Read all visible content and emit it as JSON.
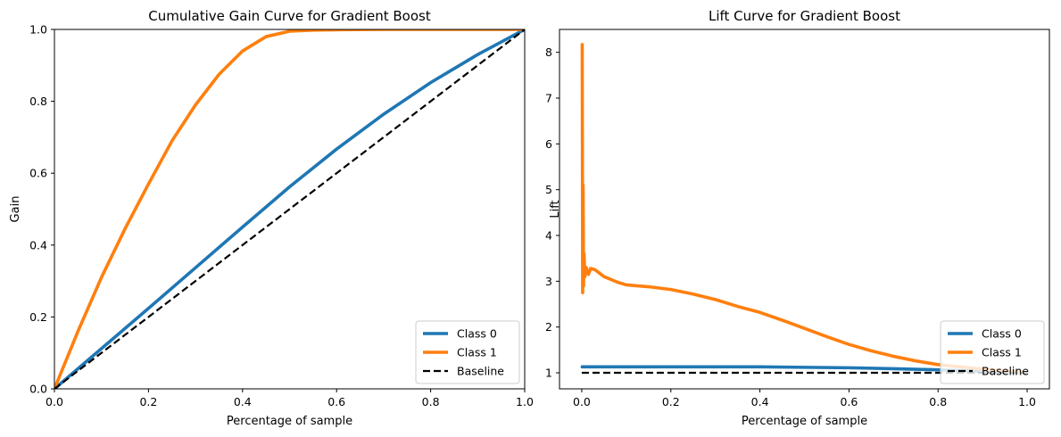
{
  "chart_data": [
    {
      "type": "line",
      "title": "Cumulative Gain Curve for Gradient Boost",
      "xlabel": "Percentage of sample",
      "ylabel": "Gain",
      "xlim": [
        0,
        1
      ],
      "ylim": [
        0,
        1
      ],
      "xticks": [
        "0.0",
        "0.2",
        "0.4",
        "0.6",
        "0.8",
        "1.0"
      ],
      "yticks": [
        "0.0",
        "0.2",
        "0.4",
        "0.6",
        "0.8",
        "1.0"
      ],
      "grid": false,
      "legend_position": "lower-right",
      "series": [
        {
          "name": "Class 0",
          "color": "#1f77b4",
          "x": [
            0,
            0.1,
            0.2,
            0.3,
            0.4,
            0.5,
            0.6,
            0.7,
            0.8,
            0.9,
            1.0
          ],
          "y": [
            0,
            0.112,
            0.224,
            0.337,
            0.45,
            0.562,
            0.667,
            0.764,
            0.852,
            0.93,
            1.0
          ]
        },
        {
          "name": "Class 1",
          "color": "#ff7f0e",
          "x": [
            0,
            0.05,
            0.1,
            0.15,
            0.2,
            0.25,
            0.3,
            0.35,
            0.4,
            0.45,
            0.5,
            0.55,
            0.6,
            0.7,
            0.8,
            0.9,
            1.0
          ],
          "y": [
            0,
            0.16,
            0.31,
            0.445,
            0.57,
            0.69,
            0.79,
            0.875,
            0.94,
            0.98,
            0.995,
            0.998,
            0.999,
            1.0,
            1.0,
            1.0,
            1.0
          ]
        },
        {
          "name": "Baseline",
          "color": "#000000",
          "dash": true,
          "x": [
            0,
            1
          ],
          "y": [
            0,
            1
          ]
        }
      ]
    },
    {
      "type": "line",
      "title": "Lift Curve for Gradient Boost",
      "xlabel": "Percentage of sample",
      "ylabel": "Lift",
      "xlim": [
        -0.05,
        1.05
      ],
      "ylim": [
        0.65,
        8.5
      ],
      "xticks": [
        "0.0",
        "0.2",
        "0.4",
        "0.6",
        "0.8",
        "1.0"
      ],
      "yticks": [
        "1",
        "2",
        "3",
        "4",
        "5",
        "6",
        "7",
        "8"
      ],
      "grid": false,
      "legend_position": "lower-right",
      "series": [
        {
          "name": "Class 0",
          "color": "#1f77b4",
          "x": [
            0.001,
            0.1,
            0.2,
            0.3,
            0.4,
            0.5,
            0.6,
            0.7,
            0.8,
            0.9,
            1.0
          ],
          "y": [
            1.13,
            1.13,
            1.13,
            1.13,
            1.13,
            1.12,
            1.11,
            1.09,
            1.065,
            1.03,
            1.0
          ]
        },
        {
          "name": "Class 1",
          "color": "#ff7f0e",
          "x": [
            0.001,
            0.002,
            0.003,
            0.004,
            0.005,
            0.007,
            0.01,
            0.015,
            0.02,
            0.03,
            0.05,
            0.08,
            0.1,
            0.15,
            0.2,
            0.25,
            0.3,
            0.35,
            0.4,
            0.45,
            0.5,
            0.55,
            0.6,
            0.65,
            0.7,
            0.75,
            0.8,
            0.85,
            0.9,
            0.95,
            1.0
          ],
          "y": [
            8.17,
            2.75,
            5.1,
            2.9,
            3.6,
            3.1,
            3.3,
            3.15,
            3.28,
            3.25,
            3.1,
            2.98,
            2.92,
            2.88,
            2.82,
            2.72,
            2.6,
            2.45,
            2.32,
            2.15,
            1.97,
            1.79,
            1.62,
            1.48,
            1.36,
            1.26,
            1.18,
            1.13,
            1.08,
            1.04,
            1.0
          ]
        },
        {
          "name": "Baseline",
          "color": "#000000",
          "dash": true,
          "x": [
            0,
            1
          ],
          "y": [
            1,
            1
          ]
        }
      ]
    }
  ]
}
